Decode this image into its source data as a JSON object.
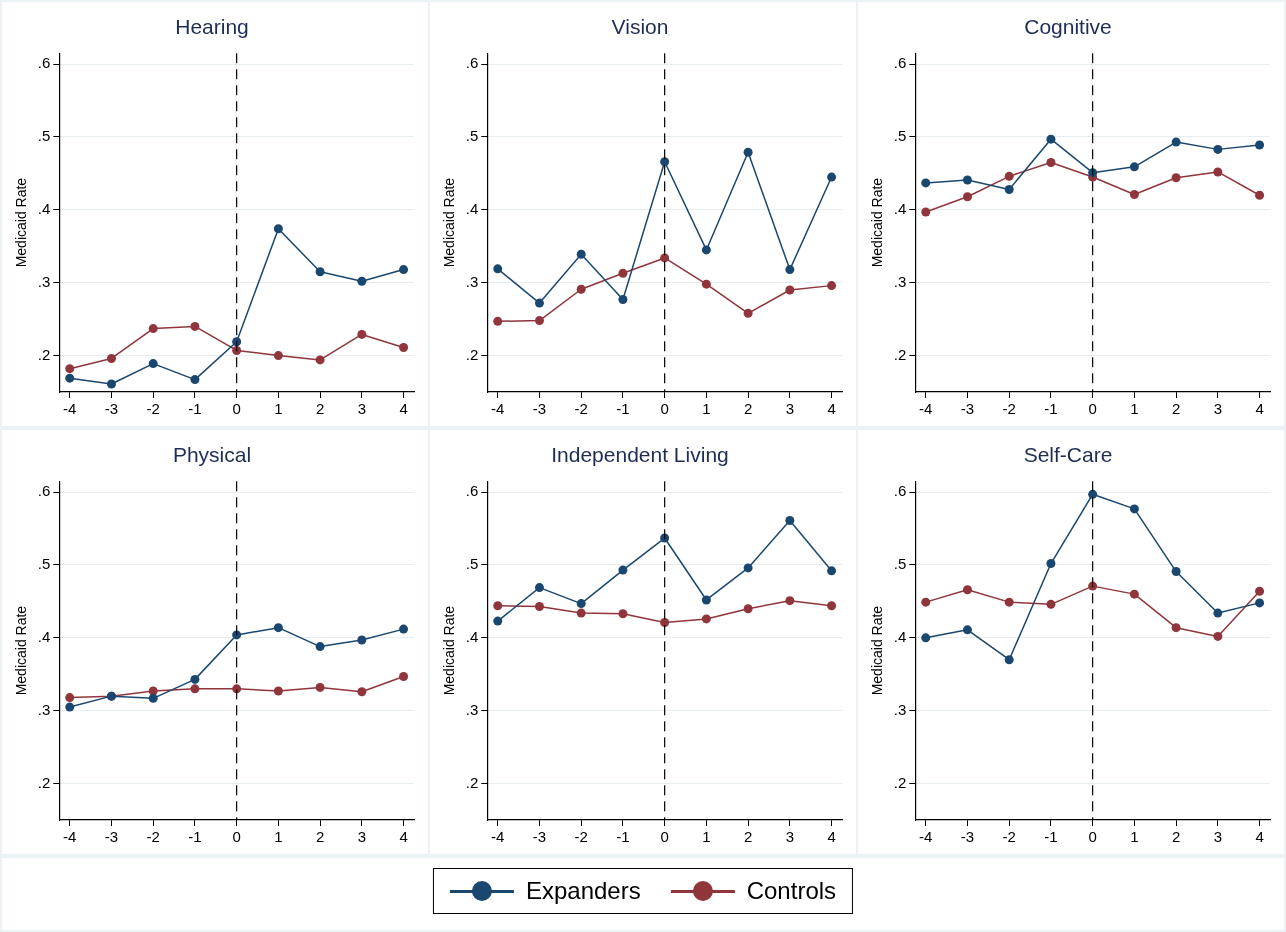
{
  "chart_data": [
    {
      "type": "line",
      "title": "Hearing",
      "ylabel": "Medicaid Rate",
      "x": [
        -4,
        -3,
        -2,
        -1,
        0,
        1,
        2,
        3,
        4
      ],
      "xlim": [
        -4.25,
        4.25
      ],
      "xticks": [
        -4,
        -3,
        -2,
        -1,
        0,
        1,
        2,
        3,
        4
      ],
      "ylim": [
        0.15,
        0.615
      ],
      "yticks": [
        {
          "value": 0.2,
          "label": ".2"
        },
        {
          "value": 0.3,
          "label": ".3"
        },
        {
          "value": 0.4,
          "label": ".4"
        },
        {
          "value": 0.5,
          "label": ".5"
        },
        {
          "value": 0.6,
          "label": ".6"
        }
      ],
      "grid": "y",
      "marker": "circle",
      "legend": "bottom",
      "ref_lines": [
        {
          "axis": "x",
          "value": 0,
          "line_style": "dashed",
          "color": "#000000"
        }
      ],
      "series": [
        {
          "name": "Expanders",
          "color": "#1a476f",
          "values": [
            0.169,
            0.161,
            0.189,
            0.167,
            0.219,
            0.374,
            0.315,
            0.302,
            0.318
          ]
        },
        {
          "name": "Controls",
          "color": "#90353b",
          "values": [
            0.182,
            0.196,
            0.237,
            0.24,
            0.207,
            0.2,
            0.194,
            0.229,
            0.211
          ]
        }
      ]
    },
    {
      "type": "line",
      "title": "Vision",
      "ylabel": "Medicaid Rate",
      "x": [
        -4,
        -3,
        -2,
        -1,
        0,
        1,
        2,
        3,
        4
      ],
      "xlim": [
        -4.25,
        4.25
      ],
      "xticks": [
        -4,
        -3,
        -2,
        -1,
        0,
        1,
        2,
        3,
        4
      ],
      "ylim": [
        0.15,
        0.615
      ],
      "yticks": [
        {
          "value": 0.2,
          "label": ".2"
        },
        {
          "value": 0.3,
          "label": ".3"
        },
        {
          "value": 0.4,
          "label": ".4"
        },
        {
          "value": 0.5,
          "label": ".5"
        },
        {
          "value": 0.6,
          "label": ".6"
        }
      ],
      "grid": "y",
      "marker": "circle",
      "ref_lines": [
        {
          "axis": "x",
          "value": 0,
          "line_style": "dashed",
          "color": "#000000"
        }
      ],
      "series": [
        {
          "color": "#1a476f",
          "values": [
            0.319,
            0.272,
            0.339,
            0.277,
            0.466,
            0.345,
            0.479,
            0.318,
            0.445
          ]
        },
        {
          "color": "#90353b",
          "values": [
            0.247,
            0.248,
            0.291,
            0.313,
            0.334,
            0.298,
            0.258,
            0.29,
            0.296
          ]
        }
      ]
    },
    {
      "type": "line",
      "title": "Cognitive",
      "ylabel": "Medicaid Rate",
      "x": [
        -4,
        -3,
        -2,
        -1,
        0,
        1,
        2,
        3,
        4
      ],
      "xlim": [
        -4.25,
        4.25
      ],
      "xticks": [
        -4,
        -3,
        -2,
        -1,
        0,
        1,
        2,
        3,
        4
      ],
      "ylim": [
        0.15,
        0.615
      ],
      "yticks": [
        {
          "value": 0.2,
          "label": ".2"
        },
        {
          "value": 0.3,
          "label": ".3"
        },
        {
          "value": 0.4,
          "label": ".4"
        },
        {
          "value": 0.5,
          "label": ".5"
        },
        {
          "value": 0.6,
          "label": ".6"
        }
      ],
      "grid": "y",
      "marker": "circle",
      "ref_lines": [
        {
          "axis": "x",
          "value": 0,
          "line_style": "dashed",
          "color": "#000000"
        }
      ],
      "series": [
        {
          "color": "#1a476f",
          "values": [
            0.437,
            0.441,
            0.428,
            0.497,
            0.451,
            0.459,
            0.493,
            0.483,
            0.489
          ]
        },
        {
          "color": "#90353b",
          "values": [
            0.397,
            0.418,
            0.446,
            0.465,
            0.445,
            0.421,
            0.444,
            0.452,
            0.42
          ]
        }
      ]
    },
    {
      "type": "line",
      "title": "Physical",
      "ylabel": "Medicaid Rate",
      "x": [
        -4,
        -3,
        -2,
        -1,
        0,
        1,
        2,
        3,
        4
      ],
      "xlim": [
        -4.25,
        4.25
      ],
      "xticks": [
        -4,
        -3,
        -2,
        -1,
        0,
        1,
        2,
        3,
        4
      ],
      "ylim": [
        0.15,
        0.615
      ],
      "yticks": [
        {
          "value": 0.2,
          "label": ".2"
        },
        {
          "value": 0.3,
          "label": ".3"
        },
        {
          "value": 0.4,
          "label": ".4"
        },
        {
          "value": 0.5,
          "label": ".5"
        },
        {
          "value": 0.6,
          "label": ".6"
        }
      ],
      "grid": "y",
      "marker": "circle",
      "ref_lines": [
        {
          "axis": "x",
          "value": 0,
          "line_style": "dashed",
          "color": "#000000"
        }
      ],
      "series": [
        {
          "color": "#1a476f",
          "values": [
            0.305,
            0.32,
            0.317,
            0.343,
            0.404,
            0.414,
            0.388,
            0.397,
            0.412
          ]
        },
        {
          "color": "#90353b",
          "values": [
            0.318,
            0.32,
            0.327,
            0.33,
            0.33,
            0.327,
            0.332,
            0.326,
            0.347
          ]
        }
      ]
    },
    {
      "type": "line",
      "title": "Independent Living",
      "ylabel": "Medicaid Rate",
      "x": [
        -4,
        -3,
        -2,
        -1,
        0,
        1,
        2,
        3,
        4
      ],
      "xlim": [
        -4.25,
        4.25
      ],
      "xticks": [
        -4,
        -3,
        -2,
        -1,
        0,
        1,
        2,
        3,
        4
      ],
      "ylim": [
        0.15,
        0.615
      ],
      "yticks": [
        {
          "value": 0.2,
          "label": ".2"
        },
        {
          "value": 0.3,
          "label": ".3"
        },
        {
          "value": 0.4,
          "label": ".4"
        },
        {
          "value": 0.5,
          "label": ".5"
        },
        {
          "value": 0.6,
          "label": ".6"
        }
      ],
      "grid": "y",
      "marker": "circle",
      "ref_lines": [
        {
          "axis": "x",
          "value": 0,
          "line_style": "dashed",
          "color": "#000000"
        }
      ],
      "series": [
        {
          "color": "#1a476f",
          "values": [
            0.423,
            0.469,
            0.447,
            0.493,
            0.537,
            0.452,
            0.496,
            0.561,
            0.492
          ]
        },
        {
          "color": "#90353b",
          "values": [
            0.444,
            0.443,
            0.434,
            0.433,
            0.421,
            0.426,
            0.44,
            0.451,
            0.444
          ]
        }
      ]
    },
    {
      "type": "line",
      "title": "Self-Care",
      "ylabel": "Medicaid Rate",
      "x": [
        -4,
        -3,
        -2,
        -1,
        0,
        1,
        2,
        3,
        4
      ],
      "xlim": [
        -4.25,
        4.25
      ],
      "xticks": [
        -4,
        -3,
        -2,
        -1,
        0,
        1,
        2,
        3,
        4
      ],
      "ylim": [
        0.15,
        0.615
      ],
      "yticks": [
        {
          "value": 0.2,
          "label": ".2"
        },
        {
          "value": 0.3,
          "label": ".3"
        },
        {
          "value": 0.4,
          "label": ".4"
        },
        {
          "value": 0.5,
          "label": ".5"
        },
        {
          "value": 0.6,
          "label": ".6"
        }
      ],
      "grid": "y",
      "marker": "circle",
      "ref_lines": [
        {
          "axis": "x",
          "value": 0,
          "line_style": "dashed",
          "color": "#000000"
        }
      ],
      "series": [
        {
          "color": "#1a476f",
          "values": [
            0.4,
            0.411,
            0.37,
            0.502,
            0.597,
            0.577,
            0.491,
            0.434,
            0.448
          ]
        },
        {
          "color": "#90353b",
          "values": [
            0.449,
            0.466,
            0.449,
            0.446,
            0.471,
            0.46,
            0.414,
            0.402,
            0.464
          ]
        }
      ]
    }
  ]
}
